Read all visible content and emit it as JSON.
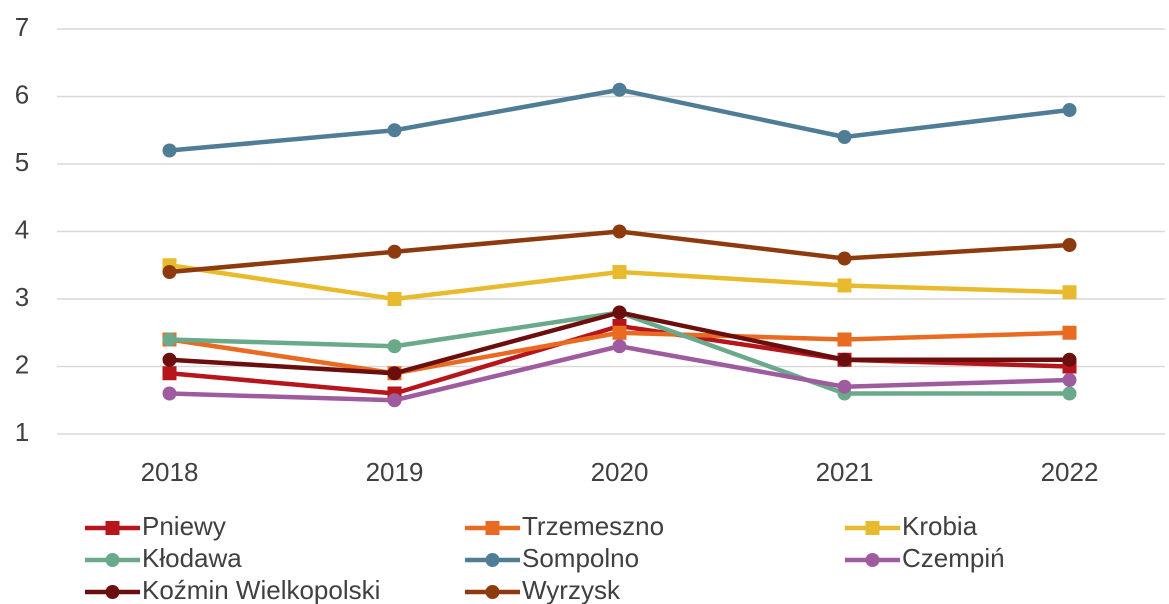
{
  "chart_data": {
    "type": "line",
    "categories": [
      "2018",
      "2019",
      "2020",
      "2021",
      "2022"
    ],
    "series": [
      {
        "name": "Pniewy",
        "color": "#b5151b",
        "marker": "square",
        "values": [
          1.9,
          1.6,
          2.6,
          2.1,
          2.0
        ]
      },
      {
        "name": "Trzemeszno",
        "color": "#e96a21",
        "marker": "square",
        "values": [
          2.4,
          1.9,
          2.5,
          2.4,
          2.5
        ]
      },
      {
        "name": "Krobia",
        "color": "#e8bb2e",
        "marker": "square",
        "values": [
          3.5,
          3.0,
          3.4,
          3.2,
          3.1
        ]
      },
      {
        "name": "Kłodawa",
        "color": "#6aaa8b",
        "marker": "circle",
        "values": [
          2.4,
          2.3,
          2.8,
          1.6,
          1.6
        ]
      },
      {
        "name": "Sompolno",
        "color": "#4f7d96",
        "marker": "circle",
        "values": [
          5.2,
          5.5,
          6.1,
          5.4,
          5.8
        ]
      },
      {
        "name": "Czempiń",
        "color": "#9e5c9e",
        "marker": "circle",
        "values": [
          1.6,
          1.5,
          2.3,
          1.7,
          1.8
        ]
      },
      {
        "name": "Koźmin Wielkopolski",
        "color": "#6b0e0e",
        "marker": "circle",
        "values": [
          2.1,
          1.9,
          2.8,
          2.1,
          2.1
        ]
      },
      {
        "name": "Wyrzysk",
        "color": "#8d3b0e",
        "marker": "circle",
        "values": [
          3.4,
          3.7,
          4.0,
          3.6,
          3.8
        ]
      }
    ],
    "ylim": [
      1,
      7
    ],
    "yticks": [
      1,
      2,
      3,
      4,
      5,
      6,
      7
    ],
    "grid": true,
    "legend": "bottom"
  }
}
